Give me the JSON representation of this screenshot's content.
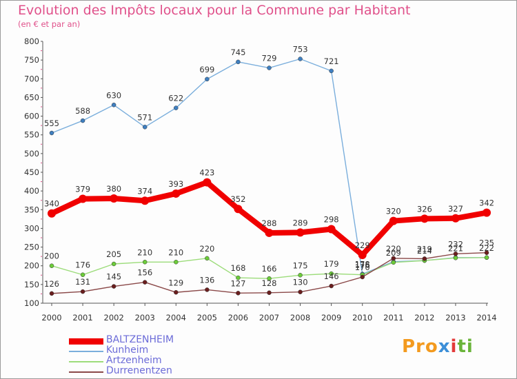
{
  "header": {
    "title": "Evolution des Impôts locaux pour la Commune par Habitant",
    "subtitle": "(en € et par an)"
  },
  "logo": {
    "text": "Proxiti",
    "colors": [
      "#f39a1e",
      "#3c8fd8",
      "#e33b3b",
      "#6ab43a"
    ]
  },
  "chart_data": {
    "type": "line",
    "title": "Evolution des Impôts locaux pour la Commune par Habitant",
    "subtitle": "(en € et par an)",
    "xlabel": "",
    "ylabel": "",
    "x": [
      "2000",
      "2001",
      "2002",
      "2003",
      "2004",
      "2005",
      "2006",
      "2007",
      "2008",
      "2009",
      "2010",
      "2011",
      "2012",
      "2013",
      "2014"
    ],
    "ylim": [
      100,
      800
    ],
    "yticks": [
      100,
      150,
      200,
      250,
      300,
      350,
      400,
      450,
      500,
      550,
      600,
      650,
      700,
      750,
      800
    ],
    "grid": false,
    "legend": "bottom-left",
    "series": [
      {
        "name": "Kunheim",
        "color": "#7aaedc",
        "marker": "#3f7fc0",
        "values": [
          555,
          588,
          630,
          571,
          622,
          699,
          745,
          729,
          753,
          721,
          178,
          211,
          214,
          222,
          222
        ],
        "labels": [
          "555",
          "588",
          "630",
          "571",
          "622",
          "699",
          "745",
          "729",
          "753",
          "721",
          "178",
          "",
          "",
          "",
          ""
        ]
      },
      {
        "name": "Artzenheim",
        "color": "#9cdc7a",
        "marker": "#6ccc3a",
        "values": [
          200,
          176,
          205,
          210,
          210,
          220,
          168,
          166,
          175,
          179,
          176,
          209,
          214,
          221,
          222
        ],
        "labels": [
          "200",
          "176",
          "205",
          "210",
          "210",
          "220",
          "168",
          "166",
          "175",
          "179",
          "176",
          "209",
          "214",
          "221",
          "222"
        ]
      },
      {
        "name": "Durrenentzen",
        "color": "#8a4848",
        "marker": "#6a1e1e",
        "values": [
          126,
          131,
          145,
          156,
          129,
          136,
          127,
          128,
          130,
          146,
          170,
          220,
          219,
          232,
          235
        ],
        "labels": [
          "126",
          "131",
          "145",
          "156",
          "129",
          "136",
          "127",
          "128",
          "130",
          "146",
          "170",
          "220",
          "219",
          "232",
          "235"
        ]
      },
      {
        "name": "BALTZENHEIM",
        "color": "#f00000",
        "marker": "#f00000",
        "values": [
          340,
          379,
          380,
          374,
          393,
          423,
          352,
          288,
          289,
          298,
          229,
          320,
          326,
          327,
          342
        ],
        "labels": [
          "340",
          "379",
          "380",
          "374",
          "393",
          "423",
          "352",
          "288",
          "289",
          "298",
          "229",
          "320",
          "326",
          "327",
          "342"
        ]
      }
    ]
  },
  "legend": {
    "items": [
      {
        "label": "BALTZENHEIM",
        "color": "#f00000",
        "thickness": 9
      },
      {
        "label": "Kunheim",
        "color": "#7aaedc",
        "thickness": 2
      },
      {
        "label": "Artzenheim",
        "color": "#9cdc7a",
        "thickness": 2
      },
      {
        "label": "Durrenentzen",
        "color": "#8a4848",
        "thickness": 2
      }
    ]
  }
}
